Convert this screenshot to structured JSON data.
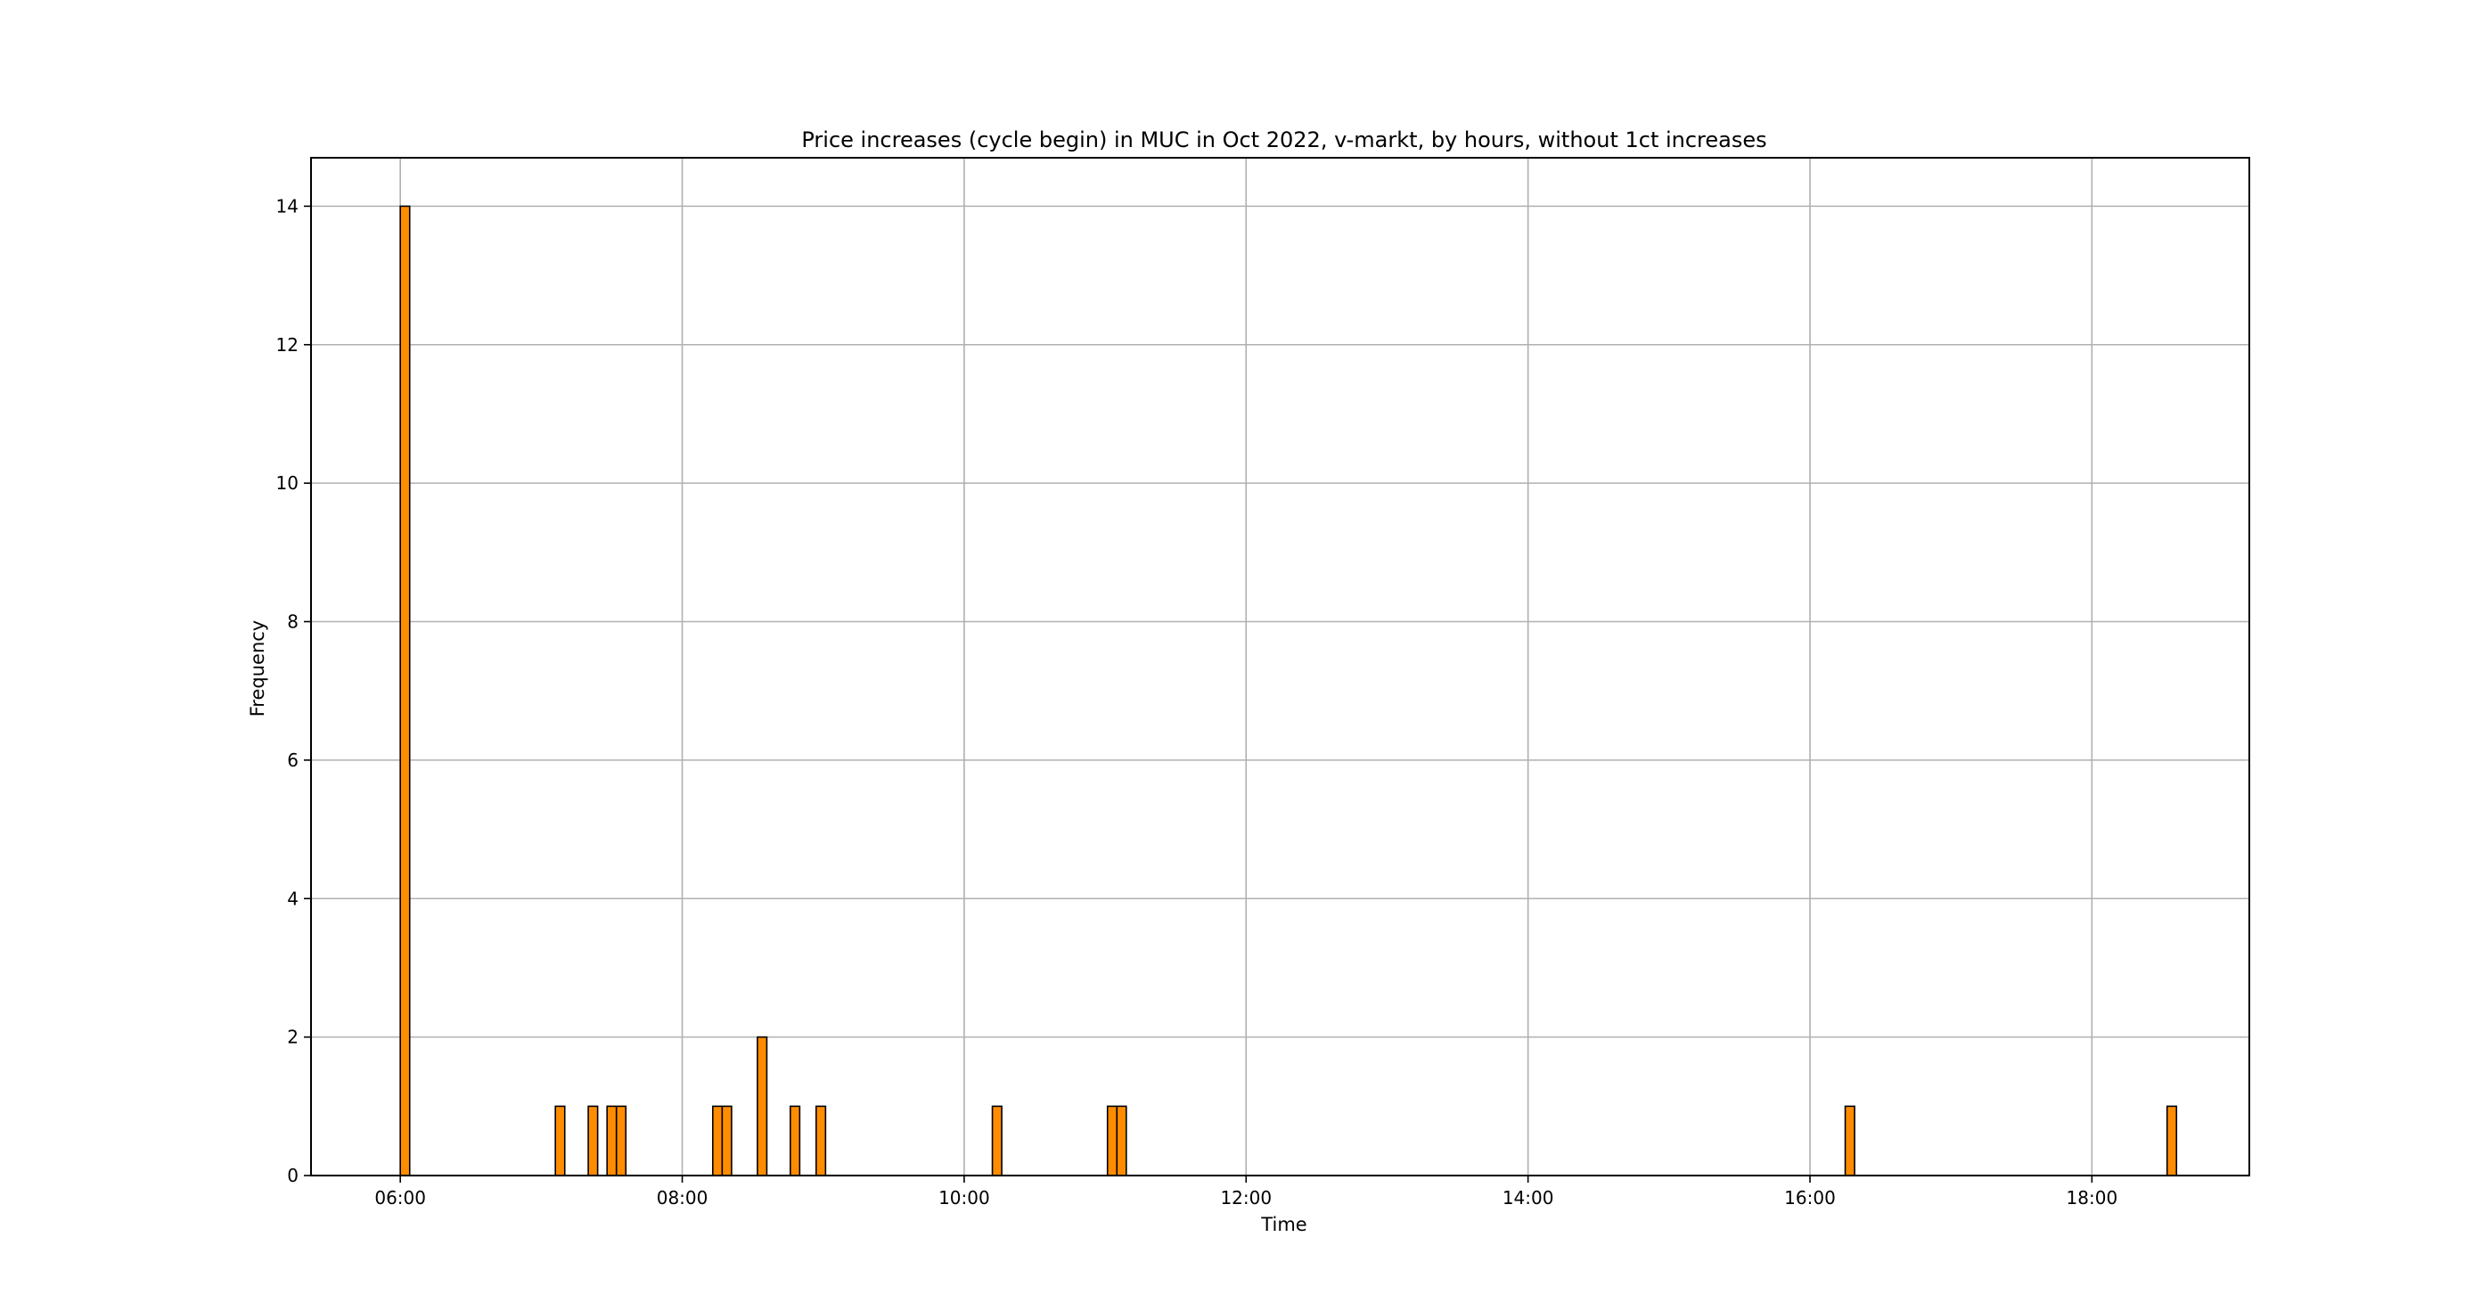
{
  "chart_data": {
    "type": "bar",
    "title": "Price increases (cycle begin) in MUC in Oct 2022, v-markt, by hours, without 1ct increases",
    "xlabel": "Time",
    "ylabel": "Frequency",
    "xlim": [
      "05:22",
      "19:07"
    ],
    "ylim": [
      0,
      14.7
    ],
    "x_ticks": [
      "06:00",
      "08:00",
      "10:00",
      "12:00",
      "14:00",
      "16:00",
      "18:00"
    ],
    "y_ticks": [
      "0",
      "2",
      "4",
      "6",
      "8",
      "10",
      "12",
      "14"
    ],
    "grid": true,
    "bar_width_minutes": 4,
    "bar_color": "#ff8c00",
    "bar_edge_color": "#000000",
    "bars": [
      {
        "time": "06:02",
        "count": 14
      },
      {
        "time": "07:08",
        "count": 1
      },
      {
        "time": "07:22",
        "count": 1
      },
      {
        "time": "07:30",
        "count": 1
      },
      {
        "time": "07:34",
        "count": 1
      },
      {
        "time": "08:15",
        "count": 1
      },
      {
        "time": "08:19",
        "count": 1
      },
      {
        "time": "08:34",
        "count": 2
      },
      {
        "time": "08:48",
        "count": 1
      },
      {
        "time": "08:59",
        "count": 1
      },
      {
        "time": "10:14",
        "count": 1
      },
      {
        "time": "11:03",
        "count": 1
      },
      {
        "time": "11:07",
        "count": 1
      },
      {
        "time": "16:17",
        "count": 1
      },
      {
        "time": "18:34",
        "count": 1
      }
    ]
  }
}
